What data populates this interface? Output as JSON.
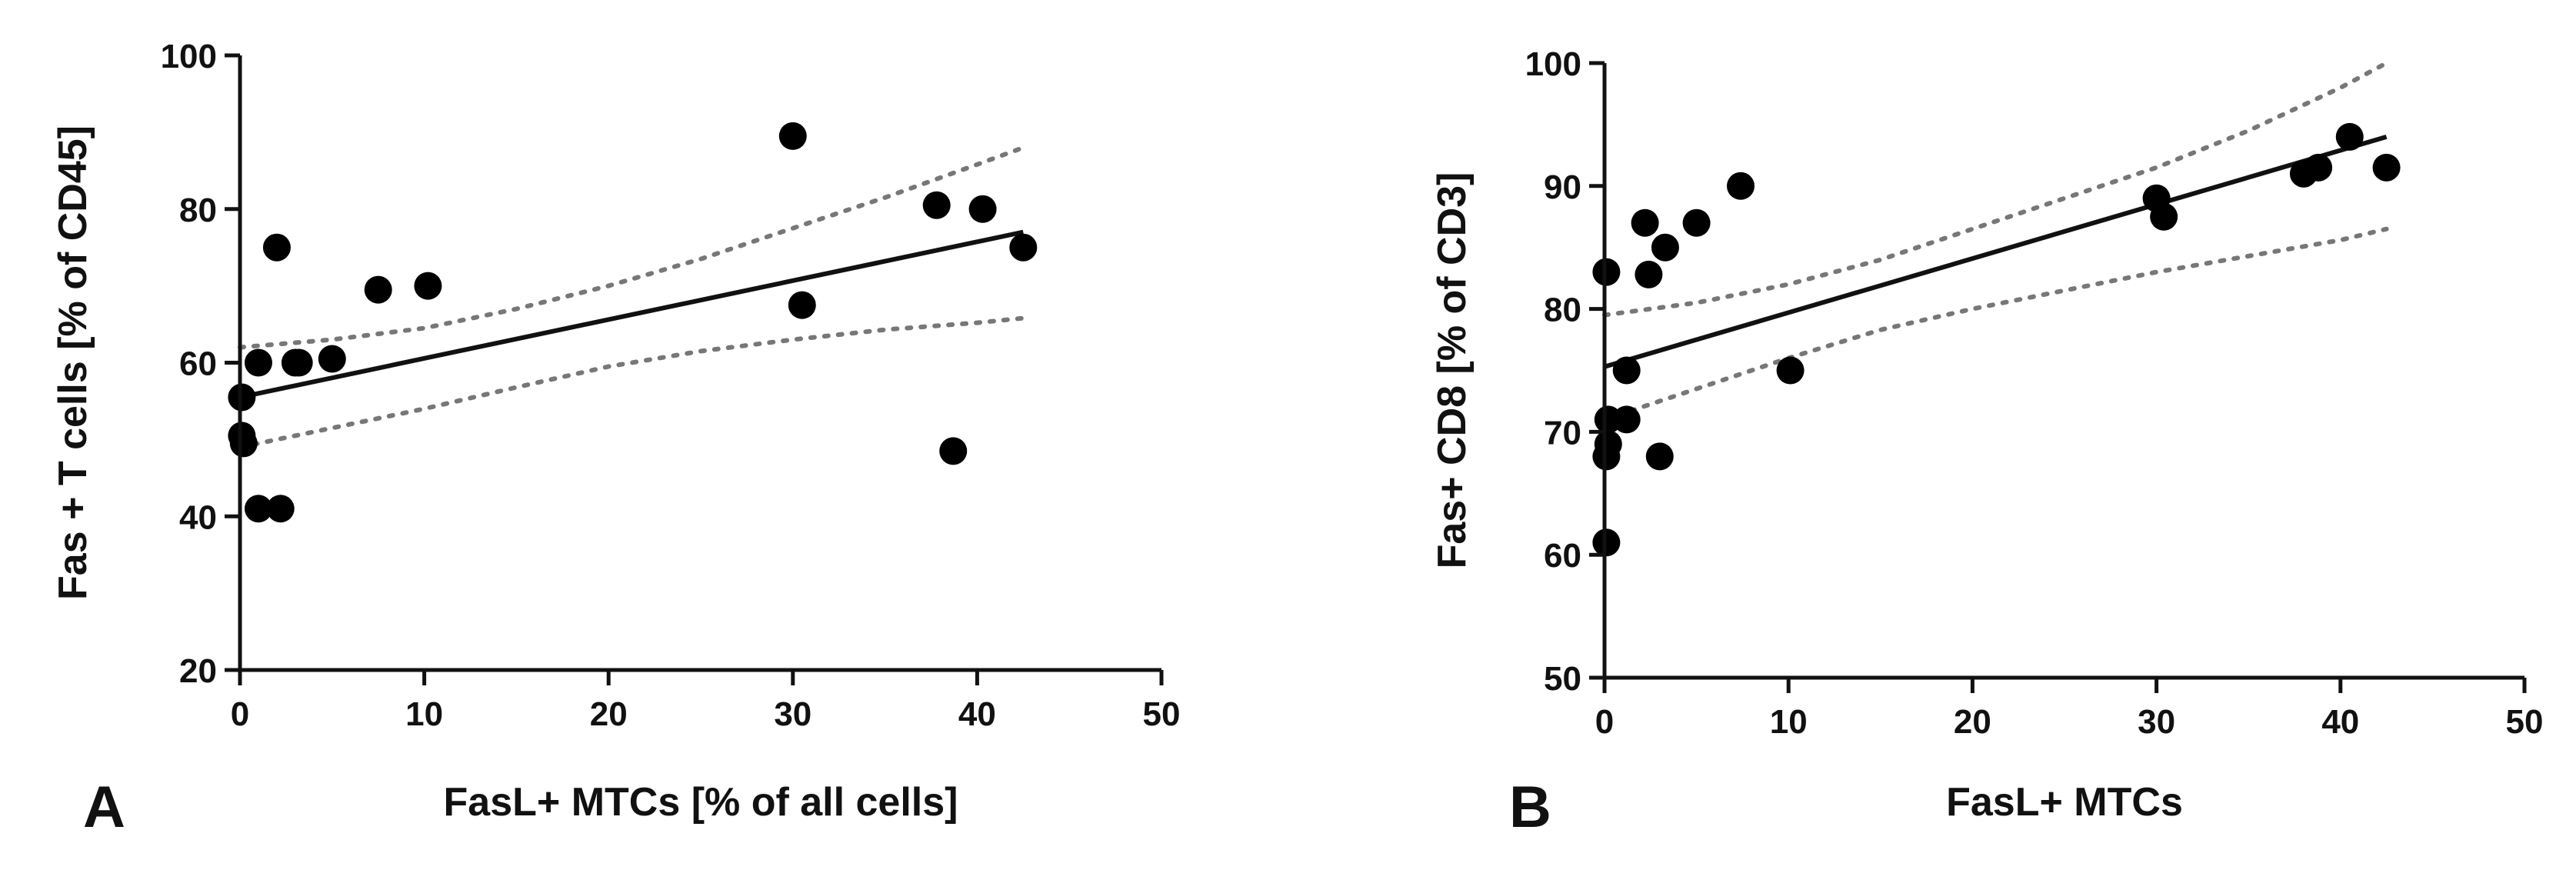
{
  "chart_data": [
    {
      "type": "scatter",
      "panel_label": "A",
      "xlabel": "FasL+ MTCs [% of all cells]",
      "ylabel": "Fas + T cells [% of CD45]",
      "xlim": [
        0,
        50
      ],
      "ylim": [
        20,
        100
      ],
      "xticks": [
        0,
        10,
        20,
        30,
        40,
        50
      ],
      "yticks": [
        20,
        40,
        60,
        80,
        100
      ],
      "points": [
        {
          "x": 0.1,
          "y": 55.5
        },
        {
          "x": 0.1,
          "y": 50.5
        },
        {
          "x": 0.2,
          "y": 49.5
        },
        {
          "x": 1.0,
          "y": 60.0
        },
        {
          "x": 1.0,
          "y": 41.0
        },
        {
          "x": 2.0,
          "y": 75.0
        },
        {
          "x": 2.2,
          "y": 41.0
        },
        {
          "x": 3.0,
          "y": 60.0
        },
        {
          "x": 3.2,
          "y": 60.0
        },
        {
          "x": 5.0,
          "y": 60.5
        },
        {
          "x": 7.5,
          "y": 69.5
        },
        {
          "x": 10.2,
          "y": 70.0
        },
        {
          "x": 30.0,
          "y": 89.5
        },
        {
          "x": 30.5,
          "y": 67.5
        },
        {
          "x": 37.8,
          "y": 80.5
        },
        {
          "x": 38.7,
          "y": 48.5
        },
        {
          "x": 40.3,
          "y": 80.0
        },
        {
          "x": 42.5,
          "y": 75.0
        }
      ],
      "regression": {
        "x": [
          0,
          42.5
        ],
        "y": [
          55.5,
          77.0
        ]
      },
      "confidence_band": {
        "x": [
          0,
          5,
          10,
          15,
          20,
          25,
          30,
          35,
          40,
          42.5
        ],
        "upper": [
          62.0,
          63.0,
          64.5,
          67.0,
          70.0,
          73.5,
          77.5,
          81.5,
          85.8,
          88.0
        ],
        "lower": [
          49.0,
          51.5,
          54.0,
          56.8,
          59.5,
          61.5,
          63.0,
          64.3,
          65.2,
          65.8
        ]
      }
    },
    {
      "type": "scatter",
      "panel_label": "B",
      "xlabel": "FasL+ MTCs",
      "ylabel": "Fas+ CD8  [% of CD3]",
      "xlim": [
        0,
        50
      ],
      "ylim": [
        50,
        100
      ],
      "xticks": [
        0,
        10,
        20,
        30,
        40,
        50
      ],
      "yticks": [
        50,
        60,
        70,
        80,
        90,
        100
      ],
      "points": [
        {
          "x": 0.1,
          "y": 83.0
        },
        {
          "x": 0.2,
          "y": 69.0
        },
        {
          "x": 0.1,
          "y": 68.0
        },
        {
          "x": 0.2,
          "y": 71.0
        },
        {
          "x": 0.1,
          "y": 61.0
        },
        {
          "x": 1.2,
          "y": 75.0
        },
        {
          "x": 1.2,
          "y": 71.0
        },
        {
          "x": 2.2,
          "y": 87.0
        },
        {
          "x": 2.4,
          "y": 82.8
        },
        {
          "x": 3.0,
          "y": 68.0
        },
        {
          "x": 3.3,
          "y": 85.0
        },
        {
          "x": 5.0,
          "y": 87.0
        },
        {
          "x": 7.4,
          "y": 90.0
        },
        {
          "x": 10.1,
          "y": 75.0
        },
        {
          "x": 30.0,
          "y": 89.0
        },
        {
          "x": 30.4,
          "y": 87.5
        },
        {
          "x": 38.0,
          "y": 91.0
        },
        {
          "x": 38.8,
          "y": 91.5
        },
        {
          "x": 40.5,
          "y": 94.0
        },
        {
          "x": 42.5,
          "y": 91.5
        }
      ],
      "regression": {
        "x": [
          0,
          42.5
        ],
        "y": [
          75.3,
          94.0
        ]
      },
      "confidence_band": {
        "x": [
          0,
          5,
          10,
          15,
          20,
          25,
          30,
          35,
          40,
          42.5
        ],
        "upper": [
          79.5,
          80.5,
          82.0,
          84.0,
          86.5,
          89.0,
          91.5,
          94.5,
          98.0,
          100.0
        ],
        "lower": [
          71.0,
          73.5,
          76.0,
          78.3,
          80.0,
          81.5,
          83.0,
          84.3,
          85.6,
          86.5
        ]
      }
    }
  ]
}
